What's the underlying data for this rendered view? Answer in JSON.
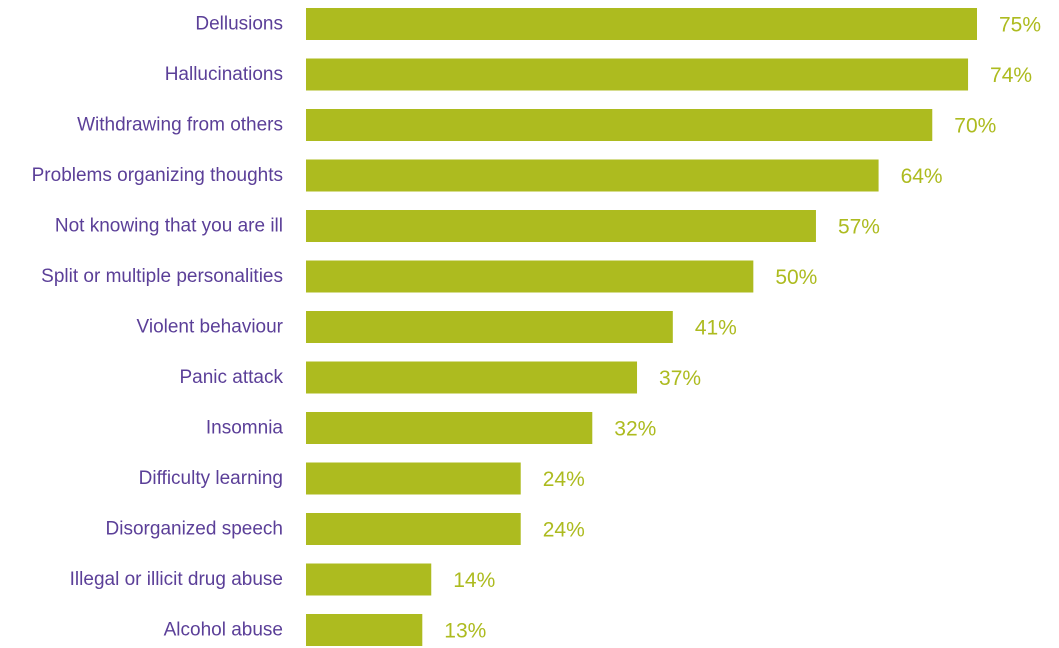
{
  "chart_data": {
    "type": "bar",
    "orientation": "horizontal",
    "categories": [
      "Dellusions",
      "Hallucinations",
      "Withdrawing from others",
      "Problems organizing thoughts",
      "Not knowing that you are ill",
      "Split or multiple personalities",
      "Violent behaviour",
      "Panic attack",
      "Insomnia",
      "Difficulty learning",
      "Disorganized speech",
      "Illegal or illicit drug abuse",
      "Alcohol abuse"
    ],
    "values": [
      75,
      74,
      70,
      64,
      57,
      50,
      41,
      37,
      32,
      24,
      24,
      14,
      13
    ],
    "value_labels": [
      "75%",
      "74%",
      "70%",
      "64%",
      "57%",
      "50%",
      "41%",
      "37%",
      "32%",
      "24%",
      "24%",
      "14%",
      "13%"
    ],
    "title": "",
    "xlabel": "",
    "ylabel": "",
    "xlim": [
      0,
      75
    ],
    "grid": false,
    "legend": "none",
    "colors": {
      "bar": "#adbb1f",
      "value_label": "#adbb1f",
      "category_label": "#5b3f98"
    }
  }
}
